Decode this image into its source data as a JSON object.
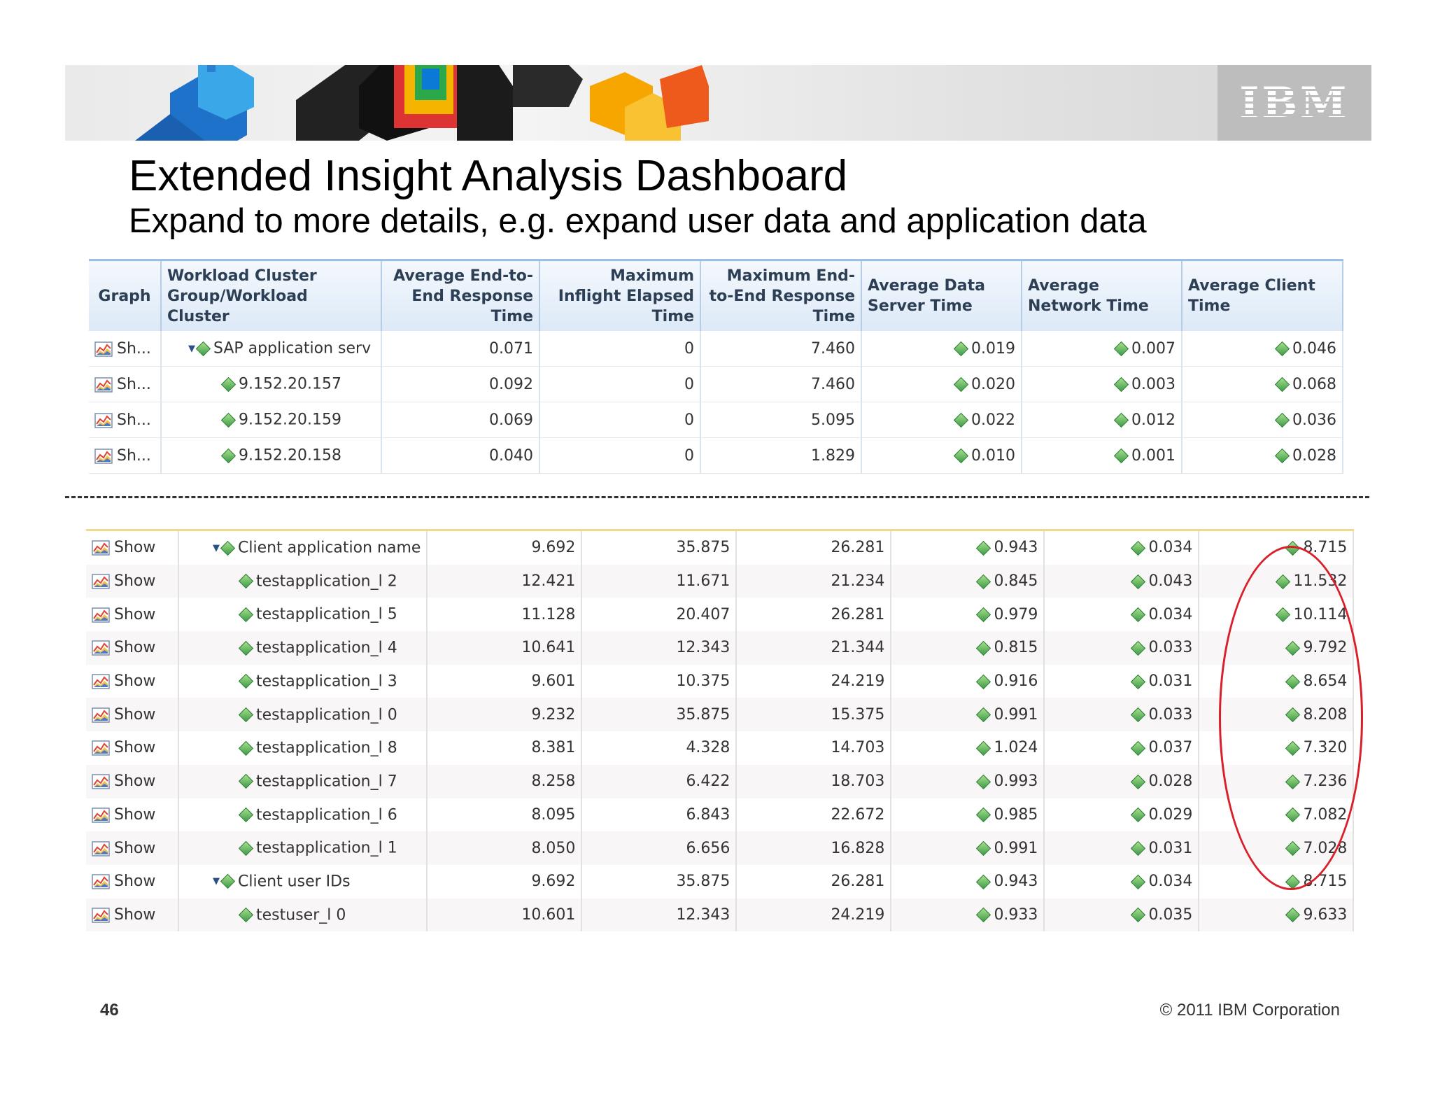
{
  "slide": {
    "title": "Extended Insight Analysis Dashboard",
    "subtitle": "Expand to more details, e.g. expand user data and application data",
    "page_number": "46",
    "copyright": "© 2011 IBM Corporation",
    "logo_text": "IBM"
  },
  "top_table": {
    "headers": [
      "Graph",
      "Workload Cluster Group/Workload Cluster",
      "Average End-to-End Response Time",
      "Maximum Inflight Elapsed Time",
      "Maximum End-to-End Response Time",
      "Average Data Server Time",
      "Average Network Time",
      "Average Client Time"
    ],
    "rows": [
      {
        "graph": "Sh...",
        "name": "SAP application serv",
        "avg_e2e": "0.071",
        "max_inflight": "0",
        "max_e2e": "7.460",
        "data_server": "0.019",
        "network": "0.007",
        "client": "0.046"
      },
      {
        "graph": "Sh...",
        "name": "9.152.20.157",
        "avg_e2e": "0.092",
        "max_inflight": "0",
        "max_e2e": "7.460",
        "data_server": "0.020",
        "network": "0.003",
        "client": "0.068"
      },
      {
        "graph": "Sh...",
        "name": "9.152.20.159",
        "avg_e2e": "0.069",
        "max_inflight": "0",
        "max_e2e": "5.095",
        "data_server": "0.022",
        "network": "0.012",
        "client": "0.036"
      },
      {
        "graph": "Sh...",
        "name": "9.152.20.158",
        "avg_e2e": "0.040",
        "max_inflight": "0",
        "max_e2e": "1.829",
        "data_server": "0.010",
        "network": "0.001",
        "client": "0.028"
      }
    ]
  },
  "bottom_table": {
    "rows": [
      {
        "graph": "Show",
        "name": "Client application name",
        "avg_e2e": "9.692",
        "max_inflight": "35.875",
        "max_e2e": "26.281",
        "data_server": "0.943",
        "network": "0.034",
        "client": "8.715"
      },
      {
        "graph": "Show",
        "name": "testapplication_l 2",
        "avg_e2e": "12.421",
        "max_inflight": "11.671",
        "max_e2e": "21.234",
        "data_server": "0.845",
        "network": "0.043",
        "client": "11.532"
      },
      {
        "graph": "Show",
        "name": "testapplication_l 5",
        "avg_e2e": "11.128",
        "max_inflight": "20.407",
        "max_e2e": "26.281",
        "data_server": "0.979",
        "network": "0.034",
        "client": "10.114"
      },
      {
        "graph": "Show",
        "name": "testapplication_l 4",
        "avg_e2e": "10.641",
        "max_inflight": "12.343",
        "max_e2e": "21.344",
        "data_server": "0.815",
        "network": "0.033",
        "client": "9.792"
      },
      {
        "graph": "Show",
        "name": "testapplication_l 3",
        "avg_e2e": "9.601",
        "max_inflight": "10.375",
        "max_e2e": "24.219",
        "data_server": "0.916",
        "network": "0.031",
        "client": "8.654"
      },
      {
        "graph": "Show",
        "name": "testapplication_l 0",
        "avg_e2e": "9.232",
        "max_inflight": "35.875",
        "max_e2e": "15.375",
        "data_server": "0.991",
        "network": "0.033",
        "client": "8.208"
      },
      {
        "graph": "Show",
        "name": "testapplication_l 8",
        "avg_e2e": "8.381",
        "max_inflight": "4.328",
        "max_e2e": "14.703",
        "data_server": "1.024",
        "network": "0.037",
        "client": "7.320"
      },
      {
        "graph": "Show",
        "name": "testapplication_l 7",
        "avg_e2e": "8.258",
        "max_inflight": "6.422",
        "max_e2e": "18.703",
        "data_server": "0.993",
        "network": "0.028",
        "client": "7.236"
      },
      {
        "graph": "Show",
        "name": "testapplication_l 6",
        "avg_e2e": "8.095",
        "max_inflight": "6.843",
        "max_e2e": "22.672",
        "data_server": "0.985",
        "network": "0.029",
        "client": "7.082"
      },
      {
        "graph": "Show",
        "name": "testapplication_l 1",
        "avg_e2e": "8.050",
        "max_inflight": "6.656",
        "max_e2e": "16.828",
        "data_server": "0.991",
        "network": "0.031",
        "client": "7.028"
      },
      {
        "graph": "Show",
        "name": "Client user IDs",
        "avg_e2e": "9.692",
        "max_inflight": "35.875",
        "max_e2e": "26.281",
        "data_server": "0.943",
        "network": "0.034",
        "client": "8.715"
      },
      {
        "graph": "Show",
        "name": "testuser_l 0",
        "avg_e2e": "10.601",
        "max_inflight": "12.343",
        "max_e2e": "24.219",
        "data_server": "0.933",
        "network": "0.035",
        "client": "9.633"
      }
    ]
  },
  "colors": {
    "highlight_oval": "#d9202a",
    "header_blue": "#dde9f7",
    "diamond_green": "#3f9c4a"
  },
  "icons": {
    "graph": "area-chart-icon",
    "expand": "expand-triangle-icon",
    "node": "green-diamond-icon"
  }
}
